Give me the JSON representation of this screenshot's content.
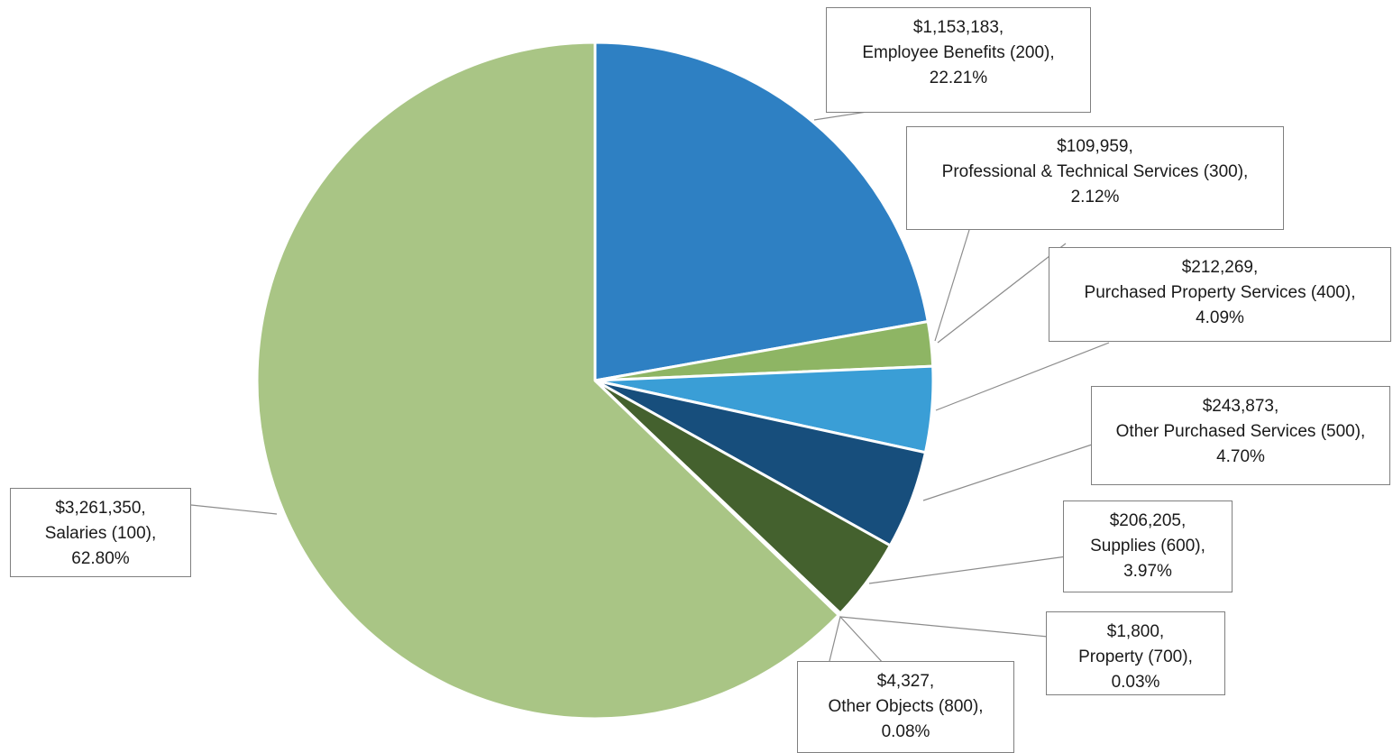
{
  "chart_data": {
    "type": "pie",
    "slices": [
      {
        "value": 1153183,
        "pct": 22.21,
        "value_label": "$1,153,183,",
        "category_label": "Employee Benefits (200),",
        "pct_label": "22.21%",
        "color": "#2e80c3"
      },
      {
        "value": 109959,
        "pct": 2.12,
        "value_label": "$109,959,",
        "category_label": "Professional & Technical Services (300),",
        "pct_label": "2.12%",
        "color": "#8eb564"
      },
      {
        "value": 212269,
        "pct": 4.09,
        "value_label": "$212,269,",
        "category_label": "Purchased Property Services (400),",
        "pct_label": "4.09%",
        "color": "#3a9ed6"
      },
      {
        "value": 243873,
        "pct": 4.7,
        "value_label": "$243,873,",
        "category_label": "Other Purchased Services (500),",
        "pct_label": "4.70%",
        "color": "#174e7c"
      },
      {
        "value": 206205,
        "pct": 3.97,
        "value_label": "$206,205,",
        "category_label": "Supplies (600),",
        "pct_label": "3.97%",
        "color": "#44612e"
      },
      {
        "value": 1800,
        "pct": 0.03,
        "value_label": "$1,800,",
        "category_label": "Property (700),",
        "pct_label": "0.03%",
        "color": "#1f5f9f"
      },
      {
        "value": 4327,
        "pct": 0.08,
        "value_label": "$4,327,",
        "category_label": "Other Objects (800),",
        "pct_label": "0.08%",
        "color": "#5b8c3a"
      },
      {
        "value": 3261350,
        "pct": 62.8,
        "value_label": "$3,261,350,",
        "category_label": "Salaries (100),",
        "pct_label": "62.80%",
        "color": "#a9c585"
      }
    ],
    "start_angle": "12 o'clock",
    "direction": "clockwise",
    "legend": "none"
  }
}
